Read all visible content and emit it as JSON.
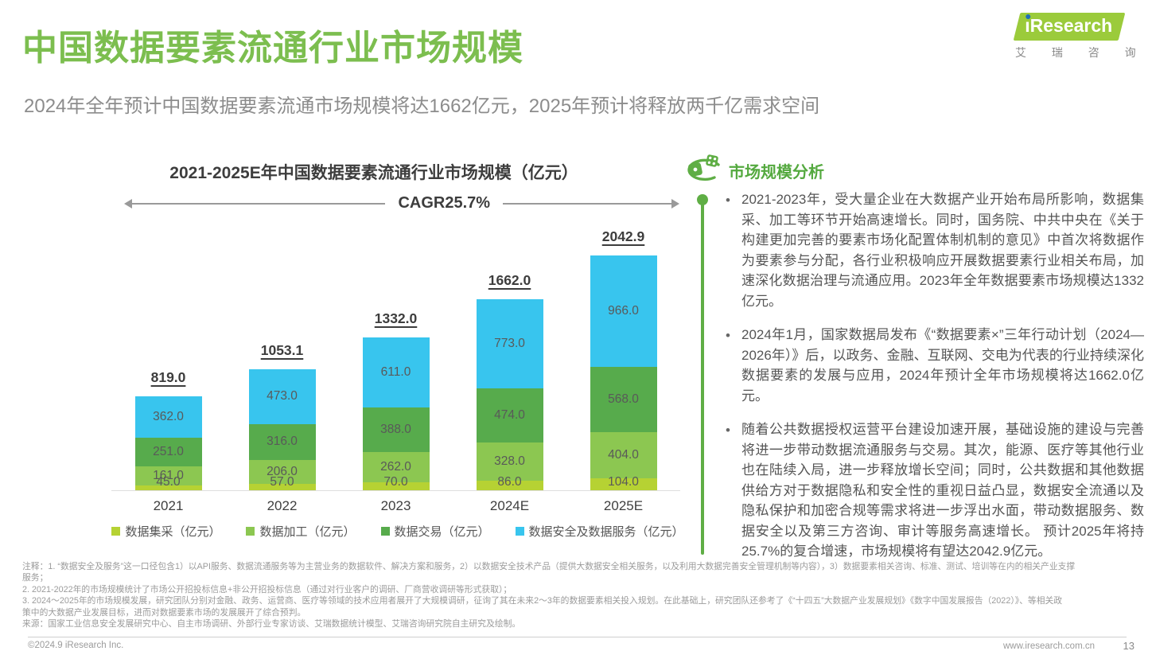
{
  "header": {
    "title": "中国数据要素流通行业市场规模",
    "subtitle": "2024年全年预计中国数据要素流通市场规模将达1662亿元，2025年预计将释放两千亿需求空间",
    "logo": {
      "brand_i": "ı",
      "brand_rest": "Research",
      "brand_cn": "艾 瑞 咨 询",
      "brand_green": "#9bcb3b",
      "dot_blue": "#1f70b7"
    }
  },
  "chart_data": {
    "type": "bar",
    "stacked": true,
    "title": "2021-2025E年中国数据要素流通行业市场规模（亿元）",
    "annotation": "CAGR25.7%",
    "categories": [
      "2021",
      "2022",
      "2023",
      "2024E",
      "2025E"
    ],
    "series": [
      {
        "name": "数据集采（亿元）",
        "color": "#b6d233",
        "values": [
          45.0,
          57.0,
          70.0,
          86.0,
          104.0
        ]
      },
      {
        "name": "数据加工（亿元）",
        "color": "#8cc751",
        "values": [
          161.0,
          206.0,
          262.0,
          328.0,
          404.0
        ]
      },
      {
        "name": "数据交易（亿元）",
        "color": "#57ab4c",
        "values": [
          251.0,
          316.0,
          388.0,
          474.0,
          568.0
        ]
      },
      {
        "name": "数据安全及数据服务（亿元）",
        "color": "#38c5ee",
        "values": [
          362.0,
          473.0,
          611.0,
          773.0,
          966.0
        ]
      }
    ],
    "totals": [
      819.0,
      1053.1,
      1332.0,
      1662.0,
      2042.9
    ],
    "ylim": [
      0,
      2100
    ],
    "grid": false,
    "legend_position": "bottom",
    "value_labels": true,
    "total_labels_underlined": true
  },
  "analysis": {
    "heading": "市场规模分析",
    "bullets": [
      "2021-2023年，受大量企业在大数据产业开始布局所影响，数据集采、加工等环节开始高速增长。同时，国务院、中共中央在《关于构建更加完善的要素市场化配置体制机制的意见》中首次将数据作为要素参与分配，各行业积极响应开展数据要素行业相关布局，加速深化数据治理与流通应用。2023年全年数据要素市场规模达1332亿元。",
      "2024年1月，国家数据局发布《“数据要素×”三年行动计划（2024—2026年）》后，以政务、金融、互联网、交电为代表的行业持续深化数据要素的发展与应用，2024年预计全年市场规模将达1662.0亿元。",
      "随着公共数据授权运营平台建设加速开展，基础设施的建设与完善将进一步带动数据流通服务与交易。其次，能源、医疗等其他行业也在陆续入局，进一步释放增长空间；同时，公共数据和其他数据供给方对于数据隐私和安全性的重视日益凸显，数据安全流通以及隐私保护和加密合规等需求将进一步浮出水面，带动数据服务、数据安全以及第三方咨询、审计等服务高速增长。 预计2025年将持25.7%的复合增速，市场规模将有望达2042.9亿元。"
    ]
  },
  "notes": {
    "lines": [
      "注释：1. “数据安全及服务”这一口径包含1）以API服务、数据流通服务等为主营业务的数据软件、解决方案和服务，2）以数据安全技术产品（提供大数据安全相关服务，以及利用大数据完善安全管理机制等内容），3）数据要素相关咨询、标准、测试、培训等在内的相关产业支撑",
      "服务；",
      "2. 2021-2022年的市场规模统计了市场公开招投标信息+非公开招投标信息（通过对行业客户的调研、厂商营收调研等形式获取）；",
      "3. 2024～2025年的市场规模发展，研究团队分别对金融、政务、运营商、医疗等领域的技术应用者展开了大规模调研，征询了其在未来2～3年的数据要素相关投入规划。在此基础上，研究团队还参考了《“十四五”大数据产业发展规划》《数字中国发展报告（2022）》、等相关政",
      "策中的大数据产业发展目标，进而对数据要素市场的发展展开了综合预判。",
      "来源：国家工业信息安全发展研究中心、自主市场调研、外部行业专家访谈、艾瑞数据统计模型、艾瑞咨询研究院自主研究及绘制。"
    ]
  },
  "footer": {
    "copyright": "©2024.9 iResearch Inc.",
    "website": "www.iresearch.com.cn",
    "page_number": "13"
  }
}
